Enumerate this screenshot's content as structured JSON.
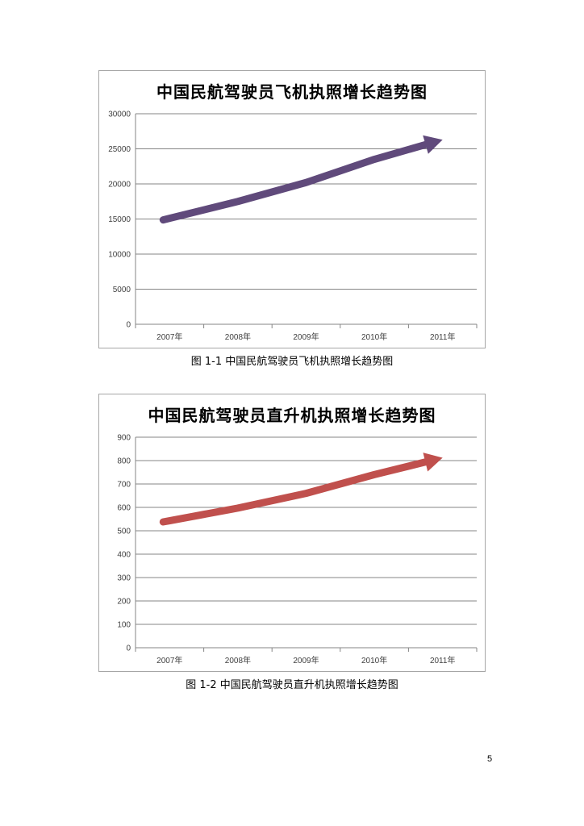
{
  "charts": [
    {
      "title": "中国民航驾驶员飞机执照增长趋势图",
      "caption": "图 1-1  中国民航驾驶员飞机执照增长趋势图"
    },
    {
      "title": "中国民航驾驶员直升机执照增长趋势图",
      "caption": "图 1-2 中国民航驾驶员直升机执照增长趋势图"
    }
  ],
  "page_number": "5",
  "chart_data": [
    {
      "type": "line",
      "title": "中国民航驾驶员飞机执照增长趋势图",
      "categories": [
        "2007年",
        "2008年",
        "2009年",
        "2010年",
        "2011年"
      ],
      "y_ticks": [
        "0",
        "5000",
        "10000",
        "15000",
        "20000",
        "25000",
        "30000"
      ],
      "ylim": [
        0,
        30000
      ],
      "series": [
        {
          "values": [
            15100,
            17500,
            20200,
            23500,
            26300
          ],
          "color": "#604a7b",
          "arrow": true
        }
      ],
      "grid": true,
      "legend": "none"
    },
    {
      "type": "line",
      "title": "中国民航驾驶员直升机执照增长趋势图",
      "categories": [
        "2007年",
        "2008年",
        "2009年",
        "2010年",
        "2011年"
      ],
      "y_ticks": [
        "0",
        "100",
        "200",
        "300",
        "400",
        "500",
        "600",
        "700",
        "800",
        "900"
      ],
      "ylim": [
        0,
        900
      ],
      "series": [
        {
          "values": [
            543,
            597,
            660,
            740,
            812
          ],
          "color": "#c0504d",
          "arrow": true
        }
      ],
      "grid": true,
      "legend": "none"
    }
  ]
}
